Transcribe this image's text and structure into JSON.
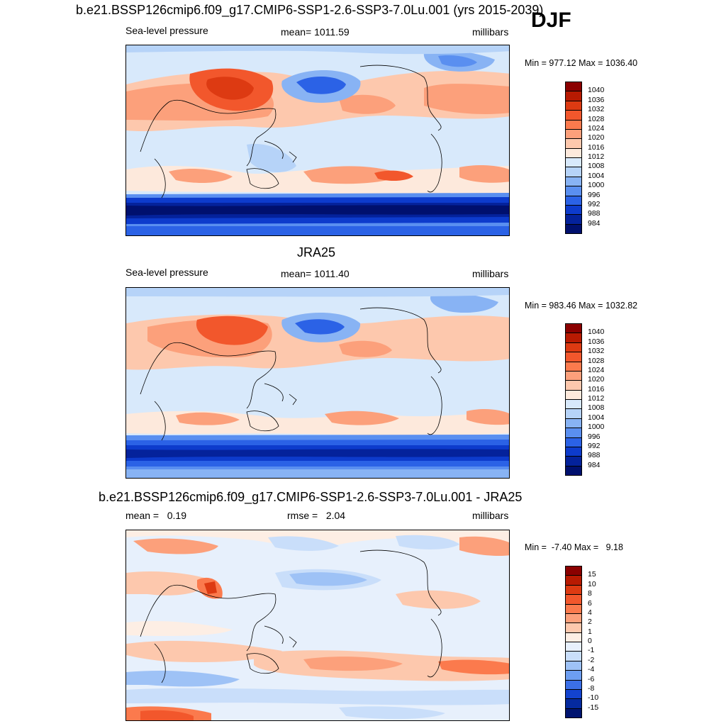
{
  "season": "DJF",
  "panels": [
    {
      "title": "b.e21.BSSP126cmip6.f09_g17.CMIP6-SSP1-2.6-SSP3-7.0Lu.001 (yrs 2015-2039)",
      "left_label": "Sea-level pressure",
      "center_label": "mean= 1011.59",
      "right_label": "millibars",
      "minmax": "Min = 977.12 Max = 1036.40",
      "levels": [
        "1040",
        "1036",
        "1032",
        "1028",
        "1024",
        "1020",
        "1016",
        "1012",
        "1008",
        "1004",
        "1000",
        "996",
        "992",
        "988",
        "984"
      ]
    },
    {
      "title": "JRA25",
      "left_label": "Sea-level pressure",
      "center_label": "mean= 1011.40",
      "right_label": "millibars",
      "minmax": "Min = 983.46 Max = 1032.82",
      "levels": [
        "1040",
        "1036",
        "1032",
        "1028",
        "1024",
        "1020",
        "1016",
        "1012",
        "1008",
        "1004",
        "1000",
        "996",
        "992",
        "988",
        "984"
      ]
    },
    {
      "title": "b.e21.BSSP126cmip6.f09_g17.CMIP6-SSP1-2.6-SSP3-7.0Lu.001 - JRA25",
      "left_label": "mean =   0.19",
      "center_label": "rmse =   2.04",
      "right_label": "millibars",
      "minmax": "Min =  -7.40 Max =   9.18",
      "levels": [
        "15",
        "10",
        "8",
        "6",
        "4",
        "2",
        "1",
        "0",
        "-1",
        "-2",
        "-4",
        "-6",
        "-8",
        "-10",
        "-15"
      ]
    }
  ],
  "colors": {
    "abs_scale": [
      "#8b0000",
      "#b81a02",
      "#dd3a12",
      "#f2572c",
      "#fb7a4d",
      "#fca07b",
      "#fdc8ad",
      "#fde9dc",
      "#d8e9fb",
      "#b6d3f8",
      "#88b3f4",
      "#5a8ff0",
      "#2b62e6",
      "#0d3bcc",
      "#04229b",
      "#00106e"
    ],
    "diff_scale": [
      "#8b0000",
      "#b81a02",
      "#dd3a12",
      "#f2572c",
      "#fb7a4d",
      "#fca07b",
      "#fdc8ad",
      "#fdeee4",
      "#e7f0fc",
      "#c9defa",
      "#9ec2f6",
      "#6d9ef1",
      "#3b6fe7",
      "#1343cf",
      "#052a9f",
      "#001470"
    ]
  }
}
